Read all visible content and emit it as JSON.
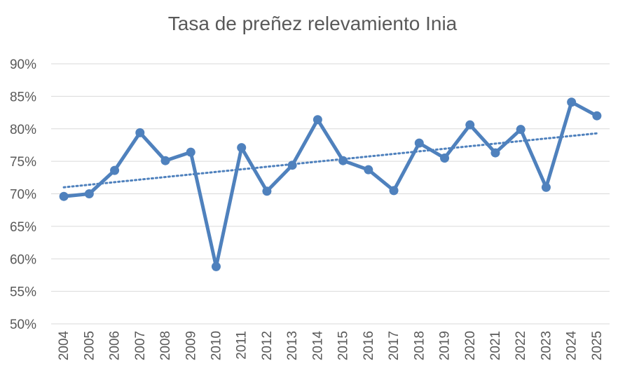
{
  "chart_data": {
    "type": "line",
    "title": "Tasa de preñez relevamiento Inia",
    "xlabel": "",
    "ylabel": "",
    "categories": [
      "2004",
      "2005",
      "2006",
      "2007",
      "2008",
      "2009",
      "2010",
      "2011",
      "2012",
      "2013",
      "2014",
      "2015",
      "2016",
      "2017",
      "2018",
      "2019",
      "2020",
      "2021",
      "2022",
      "2023",
      "2024",
      "2025"
    ],
    "series": [
      {
        "values": [
          69.6,
          70.0,
          73.6,
          79.4,
          75.1,
          76.4,
          58.8,
          77.1,
          70.4,
          74.4,
          81.4,
          75.1,
          73.7,
          70.5,
          77.8,
          75.5,
          80.6,
          76.3,
          79.9,
          71.0,
          84.1,
          82.0
        ],
        "color": "#4f81bd"
      }
    ],
    "trendline": {
      "type": "linear",
      "style": "dotted",
      "color": "#4f81bd",
      "start": 71.0,
      "end": 79.3
    },
    "yticks": [
      "50%",
      "55%",
      "60%",
      "65%",
      "70%",
      "75%",
      "80%",
      "85%",
      "90%"
    ],
    "ylim": [
      50,
      90
    ],
    "grid": true,
    "legend": "none"
  }
}
